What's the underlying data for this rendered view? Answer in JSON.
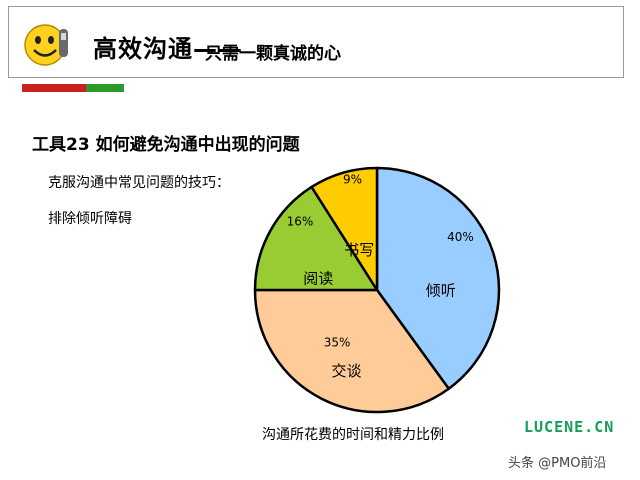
{
  "header": {
    "title": "高效沟通——",
    "subtitle": "只需一颗真诚的心"
  },
  "section_title": "工具23  如何避免沟通中出现的问题",
  "tips": {
    "heading": "克服沟通中常见问题的技巧：",
    "item": "排除倾听障碍"
  },
  "caption": "沟通所花费的时间和精力比例",
  "watermark": "LUCENE.CN",
  "credit": "头条 @PMO前沿",
  "colors": {
    "listening": "#99ccff",
    "talking": "#ffcc99",
    "reading": "#99cc33",
    "writing": "#ffcc00",
    "red_bar": "#cc1f1f",
    "green_bar": "#2a9a2a",
    "watermark": "#14a05a"
  },
  "chart_data": {
    "type": "pie",
    "title": "",
    "slices": [
      {
        "label": "倾听",
        "value": 40,
        "value_label": "40%",
        "color": "#99ccff"
      },
      {
        "label": "交谈",
        "value": 35,
        "value_label": "35%",
        "color": "#ffcc99"
      },
      {
        "label": "阅读",
        "value": 16,
        "value_label": "16%",
        "color": "#99cc33"
      },
      {
        "label": "书写",
        "value": 9,
        "value_label": "9%",
        "color": "#ffcc00"
      }
    ]
  }
}
